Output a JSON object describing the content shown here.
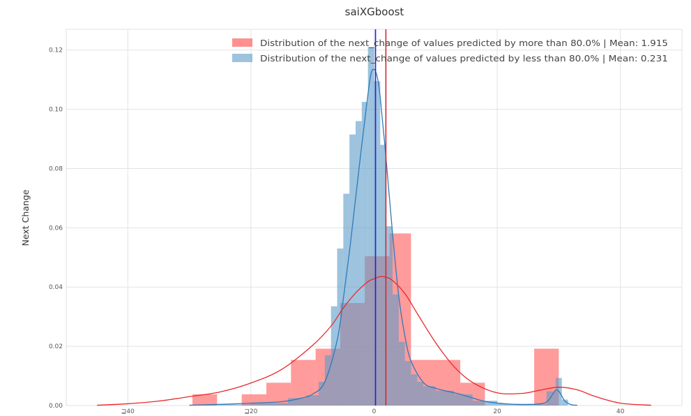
{
  "chart_data": {
    "type": "bar",
    "title": "saiXGboost",
    "xlabel": "",
    "ylabel": "Next Change",
    "xlim": [
      -50,
      50
    ],
    "ylim": [
      0,
      0.127
    ],
    "xticks": [
      -40,
      -20,
      0,
      20,
      40
    ],
    "xtick_labels": [
      "⊒40",
      "⊒20",
      "0",
      "20",
      "40"
    ],
    "yticks": [
      0.0,
      0.02,
      0.04,
      0.06,
      0.08,
      0.1,
      0.12
    ],
    "ytick_labels": [
      "0.00",
      "0.02",
      "0.04",
      "0.06",
      "0.08",
      "0.10",
      "0.12"
    ],
    "grid": true,
    "legend_position": "top-right",
    "series": [
      {
        "name": "Distribution of the next_change of values predicted by more than 80.0% | Mean: 1.915",
        "color": "#ff6b6b",
        "mean": 1.915,
        "mean_line_color": "#d62728",
        "bins": [
          {
            "x0": -29.5,
            "x1": -25.5,
            "h": 0.0038
          },
          {
            "x0": -21.5,
            "x1": -17.5,
            "h": 0.0038
          },
          {
            "x0": -17.5,
            "x1": -13.5,
            "h": 0.0077
          },
          {
            "x0": -13.5,
            "x1": -9.5,
            "h": 0.0154
          },
          {
            "x0": -9.5,
            "x1": -5.5,
            "h": 0.0192
          },
          {
            "x0": -5.5,
            "x1": -1.5,
            "h": 0.0346
          },
          {
            "x0": -1.5,
            "x1": 2.5,
            "h": 0.0504
          },
          {
            "x0": 2.5,
            "x1": 6.0,
            "h": 0.0581
          },
          {
            "x0": 6.0,
            "x1": 14.0,
            "h": 0.0154
          },
          {
            "x0": 14.0,
            "x1": 18.0,
            "h": 0.0077
          },
          {
            "x0": 26.0,
            "x1": 30.0,
            "h": 0.0192
          }
        ],
        "kde": {
          "x": [
            -45,
            -40,
            -35,
            -30,
            -25,
            -20,
            -15,
            -10,
            -7,
            -5,
            -3,
            -1,
            0,
            1,
            2,
            3,
            5,
            7,
            10,
            13,
            16,
            20,
            24,
            27,
            30,
            33,
            36,
            40,
            45
          ],
          "y": [
            0.0001,
            0.0006,
            0.0015,
            0.003,
            0.0046,
            0.0076,
            0.0122,
            0.0203,
            0.0268,
            0.0329,
            0.038,
            0.0418,
            0.0428,
            0.0435,
            0.0433,
            0.0422,
            0.0378,
            0.0311,
            0.0212,
            0.0131,
            0.0078,
            0.0043,
            0.0041,
            0.0052,
            0.0062,
            0.0053,
            0.003,
            0.0008,
            0.0001
          ]
        }
      },
      {
        "name": "Distribution of the next_change of values predicted by less than 80.0% | Mean: 0.231",
        "color": "#5b9bc8",
        "mean": 0.231,
        "mean_line_color": "#1f1fdc",
        "bins": [
          {
            "x0": -28.0,
            "x1": -25.0,
            "h": 0.0002
          },
          {
            "x0": -25.0,
            "x1": -20.0,
            "h": 0.0004
          },
          {
            "x0": -20.0,
            "x1": -14.0,
            "h": 0.0008
          },
          {
            "x0": -14.0,
            "x1": -11.0,
            "h": 0.0025
          },
          {
            "x0": -11.0,
            "x1": -9.0,
            "h": 0.0035
          },
          {
            "x0": -9.0,
            "x1": -8.0,
            "h": 0.008
          },
          {
            "x0": -8.0,
            "x1": -7.0,
            "h": 0.017
          },
          {
            "x0": -7.0,
            "x1": -6.0,
            "h": 0.0335
          },
          {
            "x0": -6.0,
            "x1": -5.0,
            "h": 0.053
          },
          {
            "x0": -5.0,
            "x1": -4.0,
            "h": 0.0715
          },
          {
            "x0": -4.0,
            "x1": -3.0,
            "h": 0.0915
          },
          {
            "x0": -3.0,
            "x1": -2.0,
            "h": 0.096
          },
          {
            "x0": -2.0,
            "x1": -1.0,
            "h": 0.1025
          },
          {
            "x0": -1.0,
            "x1": 0.0,
            "h": 0.121
          },
          {
            "x0": 0.0,
            "x1": 1.0,
            "h": 0.1095
          },
          {
            "x0": 1.0,
            "x1": 2.0,
            "h": 0.088
          },
          {
            "x0": 2.0,
            "x1": 3.0,
            "h": 0.0605
          },
          {
            "x0": 3.0,
            "x1": 4.0,
            "h": 0.0375
          },
          {
            "x0": 4.0,
            "x1": 5.0,
            "h": 0.0215
          },
          {
            "x0": 5.0,
            "x1": 6.0,
            "h": 0.015
          },
          {
            "x0": 6.0,
            "x1": 7.0,
            "h": 0.0105
          },
          {
            "x0": 7.0,
            "x1": 8.0,
            "h": 0.008
          },
          {
            "x0": 8.0,
            "x1": 10.0,
            "h": 0.0065
          },
          {
            "x0": 10.0,
            "x1": 13.0,
            "h": 0.005
          },
          {
            "x0": 13.0,
            "x1": 16.0,
            "h": 0.0038
          },
          {
            "x0": 16.0,
            "x1": 20.0,
            "h": 0.0016
          },
          {
            "x0": 20.0,
            "x1": 24.0,
            "h": 0.0006
          },
          {
            "x0": 24.0,
            "x1": 28.0,
            "h": 0.0006
          },
          {
            "x0": 28.0,
            "x1": 29.5,
            "h": 0.0048
          },
          {
            "x0": 29.5,
            "x1": 30.5,
            "h": 0.0093
          },
          {
            "x0": 30.5,
            "x1": 31.5,
            "h": 0.002
          }
        ],
        "kde": {
          "x": [
            -30,
            -25,
            -20,
            -15,
            -12,
            -10,
            -8,
            -6,
            -5,
            -4,
            -3,
            -2,
            -1,
            -0.5,
            0,
            0.5,
            1,
            2,
            3,
            4,
            5,
            6,
            8,
            10,
            14,
            18,
            22,
            26,
            28,
            29,
            29.5,
            30,
            30.5,
            31,
            32,
            33
          ],
          "y": [
            0.0001,
            0.0004,
            0.0008,
            0.0013,
            0.0024,
            0.0038,
            0.008,
            0.022,
            0.036,
            0.052,
            0.07,
            0.088,
            0.105,
            0.112,
            0.1135,
            0.111,
            0.104,
            0.082,
            0.058,
            0.037,
            0.0235,
            0.015,
            0.0078,
            0.0058,
            0.0038,
            0.0014,
            0.0005,
            0.0004,
            0.0012,
            0.0038,
            0.0052,
            0.0048,
            0.0032,
            0.0015,
            0.0003,
            0.0001
          ]
        }
      }
    ]
  }
}
